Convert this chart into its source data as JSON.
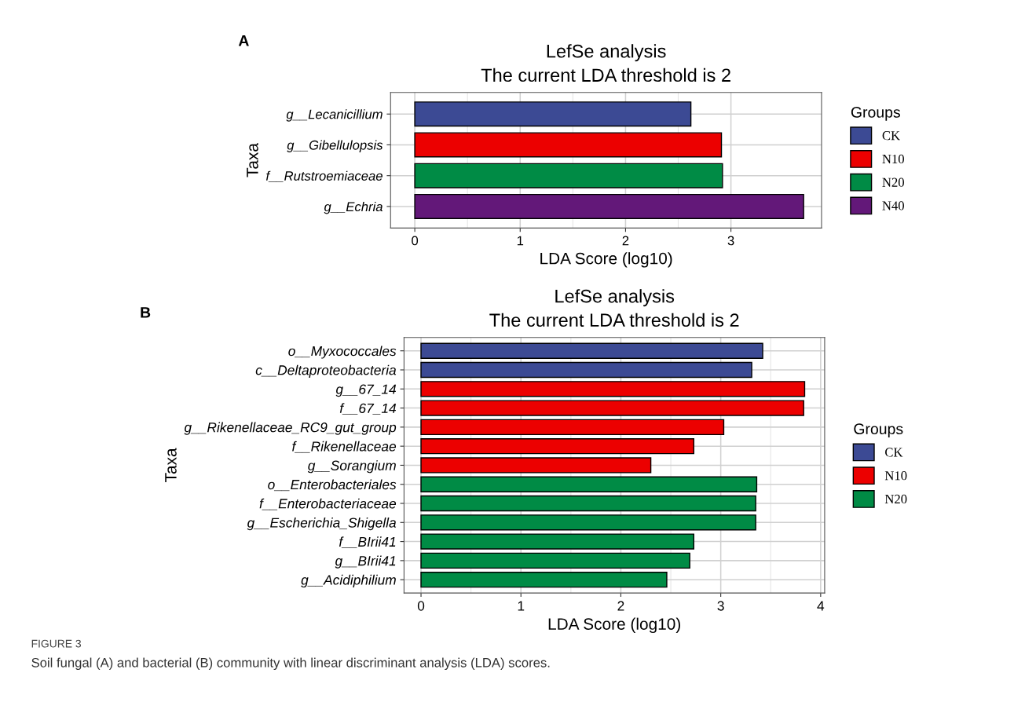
{
  "chart_data": [
    {
      "type": "bar",
      "orientation": "horizontal",
      "title": "LefSe analysis",
      "subtitle": "The current LDA threshold is 2",
      "xlabel": "LDA Score (log10)",
      "ylabel": "Taxa",
      "legend_title": "Groups",
      "legend": "right",
      "grid": true,
      "categories": [
        "g__Lecanicillium",
        "g__Gibellulopsis",
        "f__Rutstroemiaceae",
        "g__Echria"
      ],
      "series": [
        {
          "name": "CK",
          "color": "#3c4a94",
          "values": [
            2.62,
            null,
            null,
            null
          ]
        },
        {
          "name": "N10",
          "color": "#ec0000",
          "values": [
            null,
            2.91,
            null,
            null
          ]
        },
        {
          "name": "N20",
          "color": "#008b45",
          "values": [
            null,
            null,
            2.92,
            null
          ]
        },
        {
          "name": "N40",
          "color": "#631879",
          "values": [
            null,
            null,
            null,
            3.69
          ]
        }
      ],
      "xlim": [
        -0.23,
        3.86
      ],
      "xticks": [
        0,
        1,
        2,
        3
      ],
      "annotations": [
        "A"
      ]
    },
    {
      "type": "bar",
      "orientation": "horizontal",
      "title": "LefSe analysis",
      "subtitle": "The current LDA threshold is 2",
      "xlabel": "LDA Score (log10)",
      "ylabel": "Taxa",
      "legend_title": "Groups",
      "legend": "right",
      "grid": true,
      "categories": [
        "o__Myxococcales",
        "c__Deltaproteobacteria",
        "g__67_14",
        "f__67_14",
        "g__Rikenellaceae_RC9_gut_group",
        "f__Rikenellaceae",
        "g__Sorangium",
        "o__Enterobacteriales",
        "f__Enterobacteriaceae",
        "g__Escherichia_Shigella",
        "f__BIrii41",
        "g__BIrii41",
        "g__Acidiphilium"
      ],
      "series": [
        {
          "name": "CK",
          "color": "#3c4a94",
          "values": [
            3.42,
            3.31,
            null,
            null,
            null,
            null,
            null,
            null,
            null,
            null,
            null,
            null,
            null
          ]
        },
        {
          "name": "N10",
          "color": "#ec0000",
          "values": [
            null,
            null,
            3.84,
            3.83,
            3.03,
            2.73,
            2.3,
            null,
            null,
            null,
            null,
            null,
            null
          ]
        },
        {
          "name": "N20",
          "color": "#008b45",
          "values": [
            null,
            null,
            null,
            null,
            null,
            null,
            null,
            3.36,
            3.35,
            3.35,
            2.73,
            2.69,
            2.46
          ]
        }
      ],
      "xlim": [
        -0.17,
        4.04
      ],
      "xticks": [
        0,
        1,
        2,
        3,
        4
      ],
      "annotations": [
        "B",
        "FIGURE 3",
        "Soil fungal (A) and bacterial (B) community with linear discriminant analysis (LDA) scores."
      ]
    }
  ]
}
